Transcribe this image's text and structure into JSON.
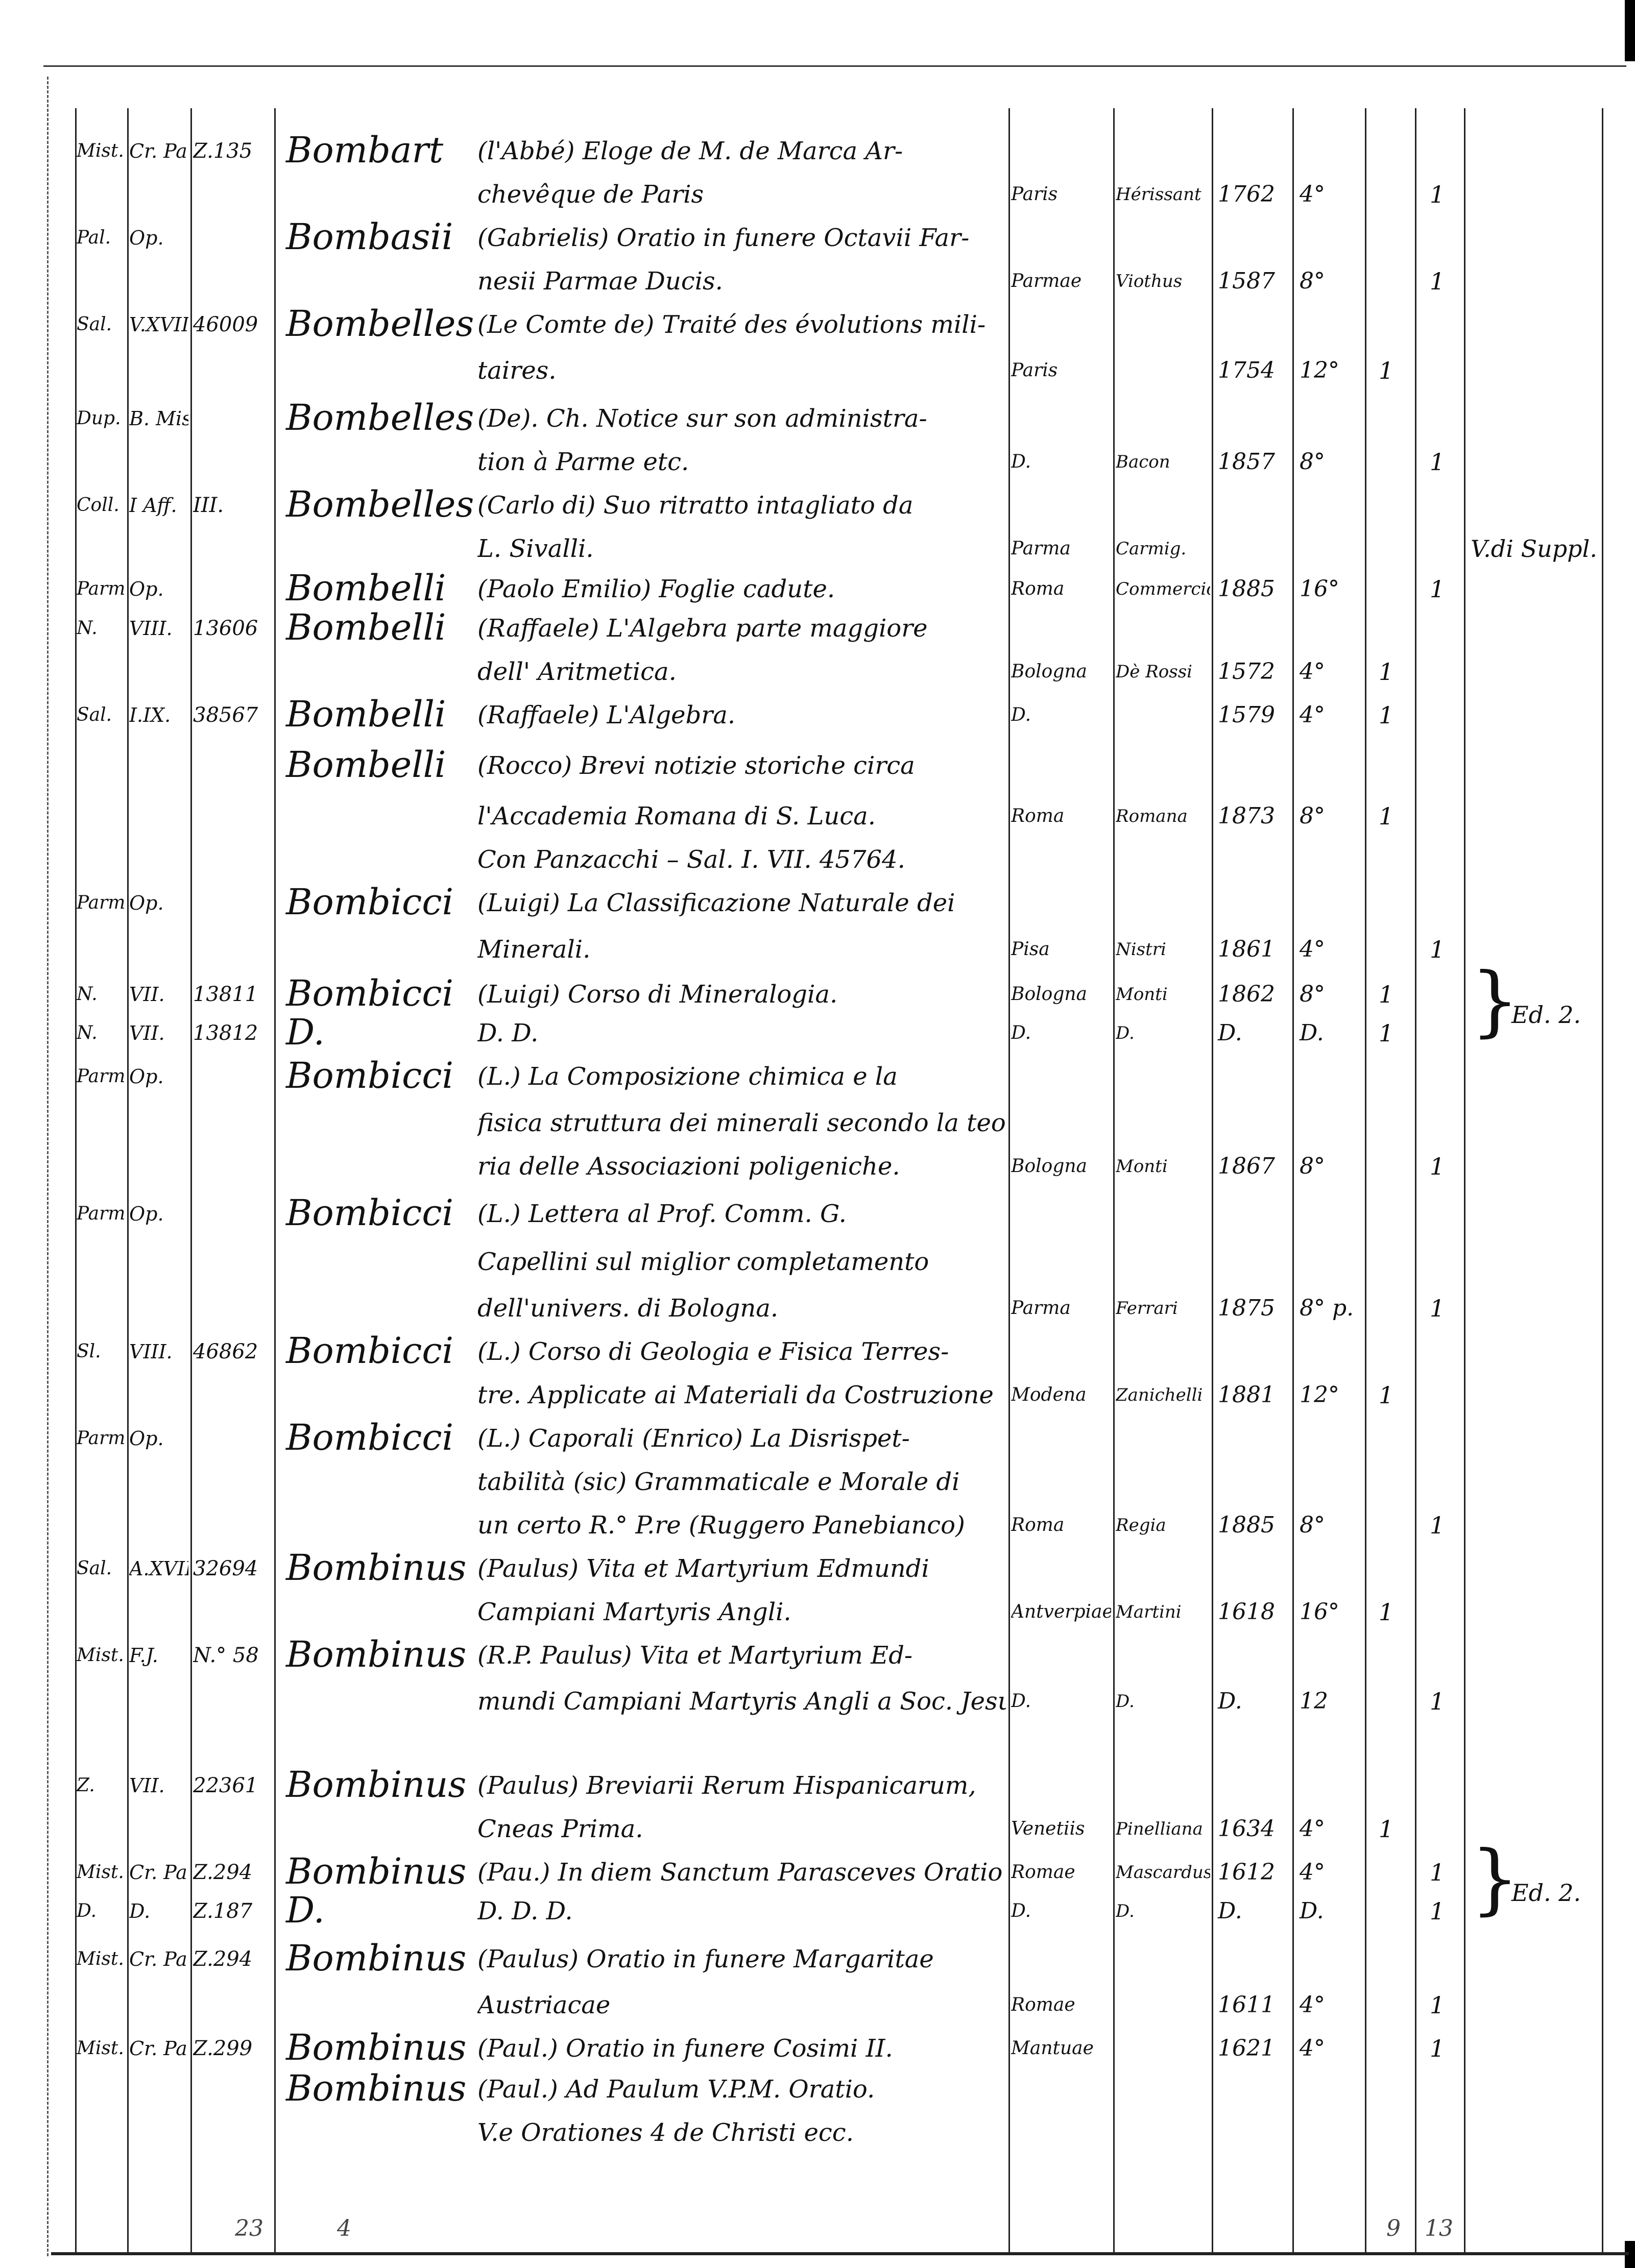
{
  "lines": [
    {
      "loc": "Mist.",
      "shelf": "Cr. Parm.",
      "num": "Z.135",
      "author": "Bombart",
      "text": "(l'Abbé) Eloge de M. de Marca Ar-"
    },
    {
      "text": "chevêque de Paris",
      "place": "Paris",
      "printer": "Hérissant",
      "year": "1762",
      "fmt": "4°",
      "v2": "1"
    },
    {
      "loc": "Pal.",
      "shelf": "Op.",
      "author": "Bombasii",
      "text": "(Gabrielis) Oratio in funere Octavii Far-"
    },
    {
      "text": "nesii Parmae Ducis.",
      "place": "Parmae",
      "printer": "Viothus",
      "year": "1587",
      "fmt": "8°",
      "v2": "1"
    },
    {
      "loc": "Sal.",
      "shelf": "V.XVIII",
      "num": "46009",
      "author": "Bombelles",
      "text": "(Le Comte de) Traité des évolutions mili-"
    },
    {
      "text": "taires.",
      "place": "Paris",
      "year": "1754",
      "fmt": "12°",
      "v1": "1"
    },
    {
      "loc": "Dup.",
      "shelf": "B. Miscellanea",
      "author": "Bombelles",
      "text": "(De). Ch. Notice sur son administra-"
    },
    {
      "text": "tion à Parme etc.",
      "place": "D.",
      "printer": "Bacon",
      "year": "1857",
      "fmt": "8°",
      "v2": "1"
    },
    {
      "loc": "Coll.",
      "shelf": "I Aff.",
      "num": "III.",
      "author": "Bombelles",
      "text": "(Carlo di) Suo ritratto intagliato da"
    },
    {
      "text": "L. Sivalli.",
      "place": "Parma",
      "printer": "Carmig.",
      "note": "V.di Suppl."
    },
    {
      "loc": "Parm.",
      "shelf": "Op.",
      "author": "Bombelli",
      "text": "(Paolo Emilio) Foglie cadute.",
      "place": "Roma",
      "printer": "Commercio",
      "year": "1885",
      "fmt": "16°",
      "v2": "1"
    },
    {
      "loc": "N.",
      "shelf": "VIII.",
      "num": "13606",
      "author": "Bombelli",
      "text": "(Raffaele) L'Algebra parte maggiore"
    },
    {
      "text": "dell' Aritmetica.",
      "place": "Bologna",
      "printer": "Dè Rossi",
      "year": "1572",
      "fmt": "4°",
      "v1": "1"
    },
    {
      "loc": "Sal.",
      "shelf": "I.IX.",
      "num": "38567",
      "author": "Bombelli",
      "text": "(Raffaele) L'Algebra.",
      "place": "D.",
      "year": "1579",
      "fmt": "4°",
      "v1": "1"
    },
    {
      "author": "Bombelli",
      "text": "(Rocco) Brevi notizie storiche circa"
    },
    {
      "text": "l'Accademia Romana di S. Luca.",
      "place": "Roma",
      "printer": "Romana",
      "year": "1873",
      "fmt": "8°",
      "v1": "1"
    },
    {
      "text": "Con Panzacchi – Sal. I. VII. 45764."
    },
    {
      "loc": "Parm.",
      "shelf": "Op.",
      "author": "Bombicci",
      "text": "(Luigi) La Classificazione Naturale dei"
    },
    {
      "text": "Minerali.",
      "place": "Pisa",
      "printer": "Nistri",
      "year": "1861",
      "fmt": "4°",
      "v2": "1"
    },
    {
      "loc": "N.",
      "shelf": "VII.",
      "num": "13811",
      "author": "Bombicci",
      "text": "(Luigi) Corso di Mineralogia.",
      "place": "Bologna",
      "printer": "Monti",
      "year": "1862",
      "fmt": "8°",
      "v1": "1",
      "note": "Ed. 2.",
      "brace": true
    },
    {
      "loc": "N.",
      "shelf": "VII.",
      "num": "13812",
      "author": "D.",
      "text": "D.            D.",
      "place": "D.",
      "printer": "D.",
      "year": "D.",
      "fmt": "D.",
      "v1": "1"
    },
    {
      "loc": "Parm.",
      "shelf": "Op.",
      "author": "Bombicci",
      "text": "(L.) La Composizione chimica e la"
    },
    {
      "text": "fisica struttura dei minerali secondo la teo-"
    },
    {
      "text": "ria delle Associazioni poligeniche.",
      "place": "Bologna",
      "printer": "Monti",
      "year": "1867",
      "fmt": "8°",
      "v2": "1"
    },
    {
      "loc": "Parm.",
      "shelf": "Op.",
      "author": "Bombicci",
      "text": "(L.) Lettera al Prof. Comm. G."
    },
    {
      "text": "Capellini sul miglior completamento"
    },
    {
      "text": "dell'univers. di Bologna.",
      "place": "Parma",
      "printer": "Ferrari",
      "year": "1875",
      "fmt": "8° p.",
      "v2": "1"
    },
    {
      "loc": "Sl.",
      "shelf": "VIII.",
      "num": "46862",
      "author": "Bombicci",
      "text": "(L.) Corso di Geologia e Fisica Terres-"
    },
    {
      "text": "tre. Applicate ai Materiali da Costruzione",
      "place": "Modena",
      "printer": "Zanichelli",
      "year": "1881",
      "fmt": "12°",
      "v1": "1"
    },
    {
      "loc": "Parm.",
      "shelf": "Op.",
      "author": "Bombicci",
      "text": "(L.) Caporali (Enrico) La Disrispet-"
    },
    {
      "text": "tabilità (sic) Grammaticale e Morale di"
    },
    {
      "text": "un certo R.° P.re (Ruggero Panebianco)",
      "place": "Roma",
      "printer": "Regia",
      "year": "1885",
      "fmt": "8°",
      "v2": "1"
    },
    {
      "loc": "Sal.",
      "shelf": "A.XVII",
      "num": "32694",
      "author": "Bombinus",
      "text": "(Paulus) Vita et Martyrium Edmundi"
    },
    {
      "text": "Campiani Martyris Angli.",
      "place": "Antverpiae",
      "printer": "Martini",
      "year": "1618",
      "fmt": "16°",
      "v1": "1"
    },
    {
      "loc": "Mist.",
      "shelf": "F.J.",
      "num": "N.° 58",
      "author": "Bombinus",
      "text": "(R.P. Paulus) Vita et Martyrium Ed-"
    },
    {
      "text": "mundi Campiani Martyris Angli a Soc. Jesu",
      "place": "D.",
      "printer": "D.",
      "year": "D.",
      "fmt": "12",
      "v2": "1"
    },
    {
      "loc": "Z.",
      "shelf": "VII.",
      "num": "22361",
      "author": "Bombinus",
      "text": "(Paulus) Breviarii Rerum Hispanicarum,"
    },
    {
      "text": "Cneas Prima.",
      "place": "Venetiis",
      "printer": "Pinelliana",
      "year": "1634",
      "fmt": "4°",
      "v1": "1"
    },
    {
      "loc": "Mist.",
      "shelf": "Cr. Parm.",
      "num": "Z.294",
      "author": "Bombinus",
      "text": "(Pau.) In diem Sanctum Parasceves Oratio",
      "place": "Romae",
      "printer": "Mascardus",
      "year": "1612",
      "fmt": "4°",
      "v2": "1",
      "note": "Ed. 2.",
      "brace": true
    },
    {
      "loc": "D.",
      "shelf": "D.",
      "num": "Z.187",
      "author": "D.",
      "text": "D.          D.          D.",
      "place": "D.",
      "printer": "D.",
      "year": "D.",
      "fmt": "D.",
      "v2": "1"
    },
    {
      "loc": "Mist.",
      "shelf": "Cr. Parm.",
      "num": "Z.294",
      "author": "Bombinus",
      "text": "(Paulus) Oratio in funere Margaritae"
    },
    {
      "text": "Austriacae",
      "place": "Romae",
      "year": "1611",
      "fmt": "4°",
      "v2": "1"
    },
    {
      "loc": "Mist.",
      "shelf": "Cr. Parm.",
      "num": "Z.299",
      "author": "Bombinus",
      "text": "(Paul.) Oratio in funere Cosimi II.",
      "place": "Mantuae",
      "year": "1621",
      "fmt": "4°",
      "v2": "1"
    },
    {
      "author": "Bombinus",
      "text": "(Paul.) Ad Paulum V.P.M. Oratio."
    },
    {
      "text": "V.e Orationes 4 de Christi ecc."
    }
  ],
  "footer": {
    "left_a": "23",
    "left_b": "4",
    "right_a": "9",
    "right_b": "13"
  }
}
